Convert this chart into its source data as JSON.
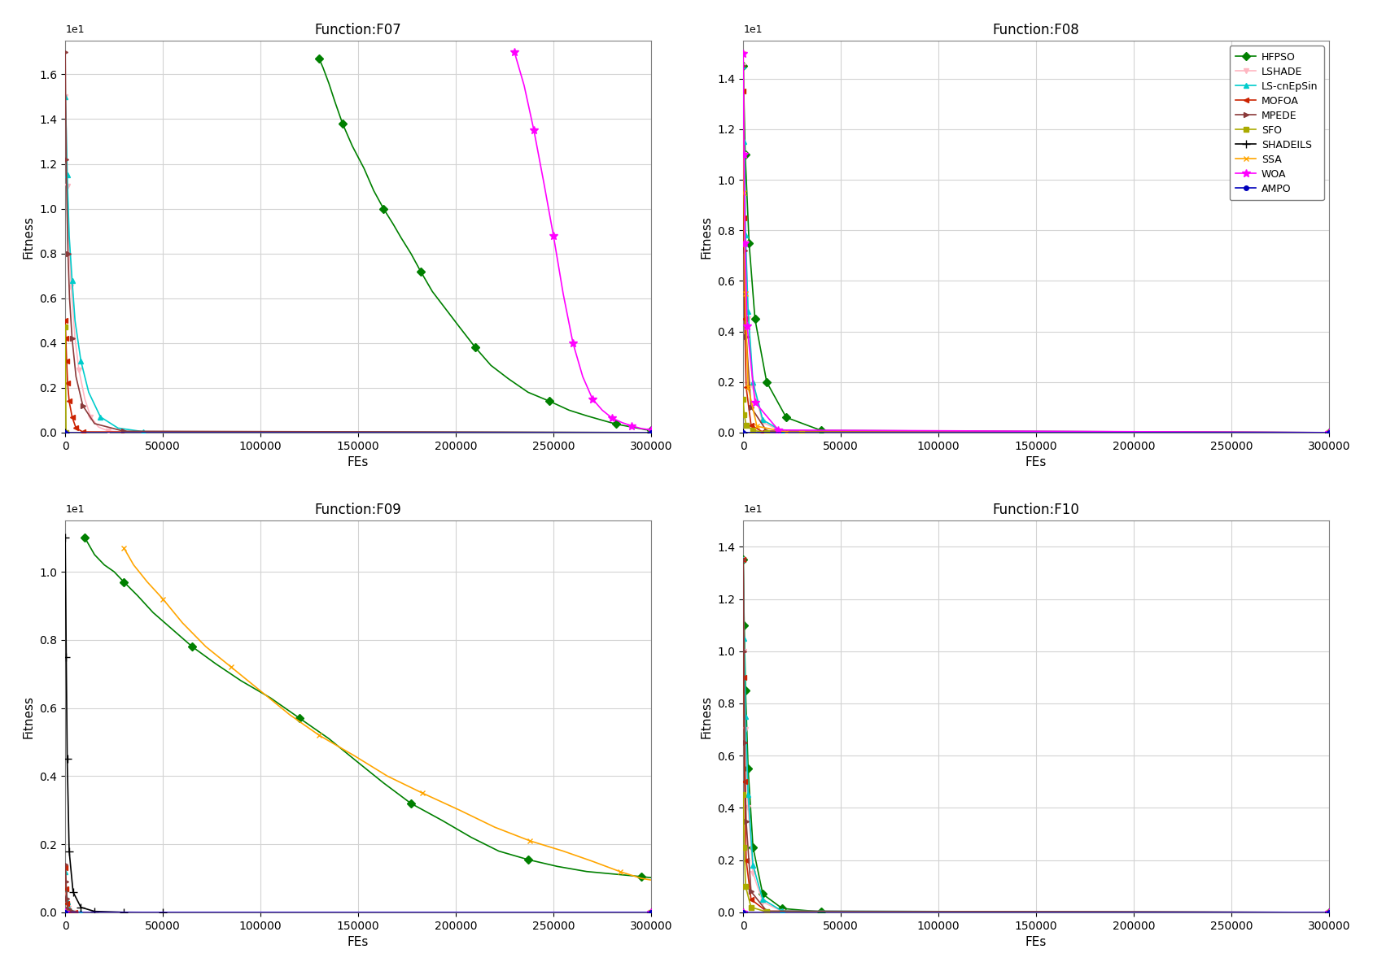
{
  "algorithms": [
    "HFPSO",
    "LSHADE",
    "LS-cnEpSin",
    "MOFOA",
    "MPEDE",
    "SFO",
    "SHADEILS",
    "SSA",
    "WOA",
    "AMPO"
  ],
  "colors": {
    "HFPSO": "#008000",
    "LSHADE": "#FFB6C1",
    "LS-cnEpSin": "#00CCCC",
    "MOFOA": "#CC2200",
    "MPEDE": "#8B3A3A",
    "SFO": "#AAAA00",
    "SHADEILS": "#000000",
    "SSA": "#FFA500",
    "WOA": "#FF00FF",
    "AMPO": "#0000BB"
  },
  "marker_styles": {
    "HFPSO": {
      "marker": "D",
      "markersize": 5
    },
    "LSHADE": {
      "marker": "v",
      "markersize": 5
    },
    "LS-cnEpSin": {
      "marker": "^",
      "markersize": 5
    },
    "MOFOA": {
      "marker": "<",
      "markersize": 5
    },
    "MPEDE": {
      "marker": ">",
      "markersize": 5
    },
    "SFO": {
      "marker": "s",
      "markersize": 5
    },
    "SHADEILS": {
      "marker": "+",
      "markersize": 7
    },
    "SSA": {
      "marker": "x",
      "markersize": 5
    },
    "WOA": {
      "marker": "*",
      "markersize": 7
    },
    "AMPO": {
      "marker": "o",
      "markersize": 4
    }
  },
  "subplots": {
    "F07": {
      "title": "Function:F07",
      "xlabel": "FEs",
      "ylabel": "Fitness",
      "ylim": [
        0,
        1.75
      ],
      "yticks": [
        0.0,
        0.2,
        0.4,
        0.6,
        0.8,
        1.0,
        1.2,
        1.4,
        1.6
      ],
      "xlim": [
        0,
        300000
      ],
      "xticks": [
        0,
        50000,
        100000,
        150000,
        200000,
        250000,
        300000
      ],
      "curves": {
        "HFPSO": {
          "x": [
            130000,
            132000,
            135000,
            138000,
            142000,
            147000,
            153000,
            158000,
            163000,
            168000,
            172000,
            177000,
            182000,
            188000,
            195000,
            202000,
            210000,
            218000,
            227000,
            237000,
            248000,
            258000,
            267000,
            275000,
            282000,
            288000,
            293000,
            297000,
            300000
          ],
          "y": [
            1.67,
            1.63,
            1.56,
            1.48,
            1.38,
            1.28,
            1.18,
            1.08,
            1.0,
            0.93,
            0.87,
            0.8,
            0.72,
            0.63,
            0.55,
            0.47,
            0.38,
            0.3,
            0.24,
            0.18,
            0.14,
            0.1,
            0.075,
            0.055,
            0.038,
            0.028,
            0.02,
            0.013,
            0.01
          ]
        },
        "LSHADE": {
          "x": [
            0,
            500,
            1000,
            2000,
            3000,
            5000,
            7000,
            10000,
            13000,
            17000,
            22000,
            30000,
            300000
          ],
          "y": [
            1.5,
            1.35,
            1.1,
            0.85,
            0.65,
            0.42,
            0.28,
            0.15,
            0.07,
            0.025,
            0.007,
            0.001,
            0.0
          ]
        },
        "LS-cnEpSin": {
          "x": [
            0,
            500,
            1000,
            2000,
            3500,
            5000,
            8000,
            12000,
            18000,
            27000,
            40000,
            300000
          ],
          "y": [
            1.5,
            1.35,
            1.15,
            0.88,
            0.68,
            0.5,
            0.32,
            0.18,
            0.07,
            0.02,
            0.004,
            0.0
          ]
        },
        "MOFOA": {
          "x": [
            0,
            300,
            700,
            1200,
            2000,
            3500,
            5500,
            9000,
            300000
          ],
          "y": [
            0.5,
            0.42,
            0.32,
            0.22,
            0.14,
            0.07,
            0.02,
            0.003,
            0.0
          ]
        },
        "MPEDE": {
          "x": [
            0,
            200,
            500,
            900,
            1400,
            2200,
            3500,
            5500,
            9000,
            15000,
            30000,
            300000
          ],
          "y": [
            1.7,
            1.48,
            1.22,
            1.0,
            0.8,
            0.6,
            0.42,
            0.25,
            0.12,
            0.04,
            0.006,
            0.0
          ]
        },
        "SFO": {
          "x": [
            0,
            400,
            300000
          ],
          "y": [
            0.47,
            0.0,
            0.0
          ]
        },
        "SHADEILS": {
          "x": [
            0,
            300000
          ],
          "y": [
            0.0,
            0.0
          ]
        },
        "SSA": {
          "x": [
            0,
            300000
          ],
          "y": [
            0.0,
            0.0
          ]
        },
        "WOA": {
          "x": [
            230000,
            235000,
            240000,
            245000,
            250000,
            255000,
            260000,
            265000,
            270000,
            275000,
            280000,
            285000,
            290000,
            295000,
            300000
          ],
          "y": [
            1.7,
            1.55,
            1.35,
            1.12,
            0.88,
            0.62,
            0.4,
            0.25,
            0.15,
            0.1,
            0.065,
            0.045,
            0.03,
            0.018,
            0.012
          ]
        },
        "AMPO": {
          "x": [
            0,
            300000
          ],
          "y": [
            0.0,
            0.0
          ]
        }
      }
    },
    "F08": {
      "title": "Function:F08",
      "xlabel": "FEs",
      "ylabel": "Fitness",
      "ylim": [
        0,
        1.55
      ],
      "yticks": [
        0.0,
        0.2,
        0.4,
        0.6,
        0.8,
        1.0,
        1.2,
        1.4
      ],
      "xlim": [
        0,
        300000
      ],
      "xticks": [
        0,
        50000,
        100000,
        150000,
        200000,
        250000,
        300000
      ],
      "curves": {
        "HFPSO": {
          "x": [
            0,
            1000,
            3000,
            6000,
            12000,
            22000,
            40000,
            300000
          ],
          "y": [
            1.45,
            1.1,
            0.75,
            0.45,
            0.2,
            0.06,
            0.008,
            0.0
          ]
        },
        "LSHADE": {
          "x": [
            0,
            500,
            1200,
            2500,
            5000,
            10000,
            20000,
            300000
          ],
          "y": [
            1.45,
            1.1,
            0.75,
            0.45,
            0.18,
            0.04,
            0.004,
            0.0
          ]
        },
        "LS-cnEpSin": {
          "x": [
            0,
            500,
            1200,
            2500,
            5000,
            10000,
            20000,
            300000
          ],
          "y": [
            1.45,
            1.15,
            0.78,
            0.48,
            0.2,
            0.05,
            0.005,
            0.0
          ]
        },
        "MOFOA": {
          "x": [
            0,
            300,
            700,
            1500,
            4000,
            10000,
            300000
          ],
          "y": [
            1.35,
            0.85,
            0.45,
            0.18,
            0.03,
            0.002,
            0.0
          ]
        },
        "MPEDE": {
          "x": [
            0,
            300,
            700,
            1500,
            4000,
            12000,
            300000
          ],
          "y": [
            1.45,
            1.1,
            0.72,
            0.38,
            0.1,
            0.006,
            0.0
          ]
        },
        "SFO": {
          "x": [
            0,
            500,
            1500,
            5000,
            12000,
            30000,
            300000
          ],
          "y": [
            0.13,
            0.07,
            0.03,
            0.008,
            0.001,
            0.0,
            0.0
          ]
        },
        "SHADEILS": {
          "x": [
            0,
            300000
          ],
          "y": [
            0.0,
            0.0
          ]
        },
        "SSA": {
          "x": [
            0,
            400,
            1000,
            2500,
            7000,
            22000,
            300000
          ],
          "y": [
            1.5,
            0.95,
            0.55,
            0.18,
            0.025,
            0.002,
            0.0
          ]
        },
        "WOA": {
          "x": [
            0,
            400,
            900,
            2000,
            6000,
            18000,
            300000
          ],
          "y": [
            1.5,
            1.1,
            0.75,
            0.42,
            0.12,
            0.01,
            0.0
          ]
        },
        "AMPO": {
          "x": [
            0,
            300000
          ],
          "y": [
            0.0,
            0.0
          ]
        }
      }
    },
    "F09": {
      "title": "Function:F09",
      "xlabel": "FEs",
      "ylabel": "Fitness",
      "ylim": [
        0,
        1.15
      ],
      "yticks": [
        0.0,
        0.2,
        0.4,
        0.6,
        0.8,
        1.0
      ],
      "xlim": [
        0,
        300000
      ],
      "xticks": [
        0,
        50000,
        100000,
        150000,
        200000,
        250000,
        300000
      ],
      "curves": {
        "HFPSO": {
          "x": [
            10000,
            15000,
            20000,
            25000,
            30000,
            37000,
            45000,
            55000,
            65000,
            77000,
            90000,
            105000,
            120000,
            135000,
            150000,
            163000,
            177000,
            193000,
            208000,
            222000,
            237000,
            252000,
            267000,
            282000,
            295000,
            300000
          ],
          "y": [
            1.1,
            1.05,
            1.02,
            1.0,
            0.97,
            0.93,
            0.88,
            0.83,
            0.78,
            0.73,
            0.68,
            0.63,
            0.57,
            0.51,
            0.44,
            0.38,
            0.32,
            0.27,
            0.22,
            0.18,
            0.155,
            0.135,
            0.12,
            0.112,
            0.105,
            0.102
          ]
        },
        "LSHADE": {
          "x": [
            0,
            500,
            1500,
            4000,
            300000
          ],
          "y": [
            0.13,
            0.06,
            0.012,
            0.0,
            0.0
          ]
        },
        "LS-cnEpSin": {
          "x": [
            0,
            500,
            1200,
            3000,
            8000,
            300000
          ],
          "y": [
            0.12,
            0.07,
            0.03,
            0.005,
            0.0,
            0.0
          ]
        },
        "MOFOA": {
          "x": [
            0,
            400,
            800,
            1800,
            5000,
            300000
          ],
          "y": [
            0.13,
            0.07,
            0.025,
            0.005,
            0.0,
            0.0
          ]
        },
        "MPEDE": {
          "x": [
            0,
            400,
            800,
            1500,
            4500,
            300000
          ],
          "y": [
            0.14,
            0.09,
            0.04,
            0.01,
            0.0,
            0.0
          ]
        },
        "SFO": {
          "x": [
            0,
            300000
          ],
          "y": [
            0.0,
            0.0
          ]
        },
        "SHADEILS": {
          "x": [
            0,
            500,
            1000,
            2000,
            4000,
            8000,
            15000,
            30000,
            50000,
            300000
          ],
          "y": [
            1.1,
            0.75,
            0.45,
            0.18,
            0.06,
            0.015,
            0.003,
            0.0005,
            0.0,
            0.0
          ]
        },
        "SSA": {
          "x": [
            30000,
            35000,
            42000,
            50000,
            60000,
            72000,
            85000,
            100000,
            115000,
            130000,
            148000,
            165000,
            183000,
            202000,
            220000,
            238000,
            255000,
            270000,
            284000,
            295000,
            300000
          ],
          "y": [
            1.07,
            1.02,
            0.97,
            0.92,
            0.85,
            0.78,
            0.72,
            0.65,
            0.58,
            0.52,
            0.46,
            0.4,
            0.35,
            0.3,
            0.25,
            0.21,
            0.18,
            0.15,
            0.12,
            0.1,
            0.095
          ]
        },
        "WOA": {
          "x": [
            0,
            300000
          ],
          "y": [
            0.0,
            0.0
          ]
        },
        "AMPO": {
          "x": [
            0,
            300000
          ],
          "y": [
            0.0,
            0.0
          ]
        }
      }
    },
    "F10": {
      "title": "Function:F10",
      "xlabel": "FEs",
      "ylabel": "Fitness",
      "ylim": [
        0,
        1.5
      ],
      "yticks": [
        0.0,
        0.2,
        0.4,
        0.6,
        0.8,
        1.0,
        1.2,
        1.4
      ],
      "xlim": [
        0,
        300000
      ],
      "xticks": [
        0,
        50000,
        100000,
        150000,
        200000,
        250000,
        300000
      ],
      "curves": {
        "HFPSO": {
          "x": [
            0,
            500,
            1200,
            2500,
            5000,
            10000,
            20000,
            40000,
            300000
          ],
          "y": [
            1.35,
            1.1,
            0.85,
            0.55,
            0.25,
            0.07,
            0.015,
            0.002,
            0.0
          ]
        },
        "LSHADE": {
          "x": [
            0,
            500,
            1200,
            2500,
            5000,
            10000,
            20000,
            300000
          ],
          "y": [
            1.35,
            1.0,
            0.7,
            0.4,
            0.15,
            0.04,
            0.004,
            0.0
          ]
        },
        "LS-cnEpSin": {
          "x": [
            0,
            500,
            1200,
            2500,
            5000,
            10000,
            20000,
            300000
          ],
          "y": [
            1.35,
            1.05,
            0.75,
            0.45,
            0.18,
            0.05,
            0.005,
            0.0
          ]
        },
        "MOFOA": {
          "x": [
            0,
            300,
            700,
            1500,
            4000,
            12000,
            300000
          ],
          "y": [
            1.35,
            0.9,
            0.5,
            0.2,
            0.05,
            0.004,
            0.0
          ]
        },
        "MPEDE": {
          "x": [
            0,
            300,
            700,
            1500,
            4000,
            12000,
            300000
          ],
          "y": [
            1.35,
            1.0,
            0.65,
            0.35,
            0.08,
            0.005,
            0.0
          ]
        },
        "SFO": {
          "x": [
            0,
            500,
            1200,
            4000,
            12000,
            300000
          ],
          "y": [
            0.45,
            0.25,
            0.1,
            0.02,
            0.002,
            0.0
          ]
        },
        "SHADEILS": {
          "x": [
            0,
            300000
          ],
          "y": [
            0.0,
            0.0
          ]
        },
        "SSA": {
          "x": [
            0,
            300000
          ],
          "y": [
            0.0,
            0.0
          ]
        },
        "WOA": {
          "x": [
            0,
            300000
          ],
          "y": [
            0.0,
            0.0
          ]
        },
        "AMPO": {
          "x": [
            0,
            300000
          ],
          "y": [
            0.0,
            0.0
          ]
        }
      }
    }
  }
}
